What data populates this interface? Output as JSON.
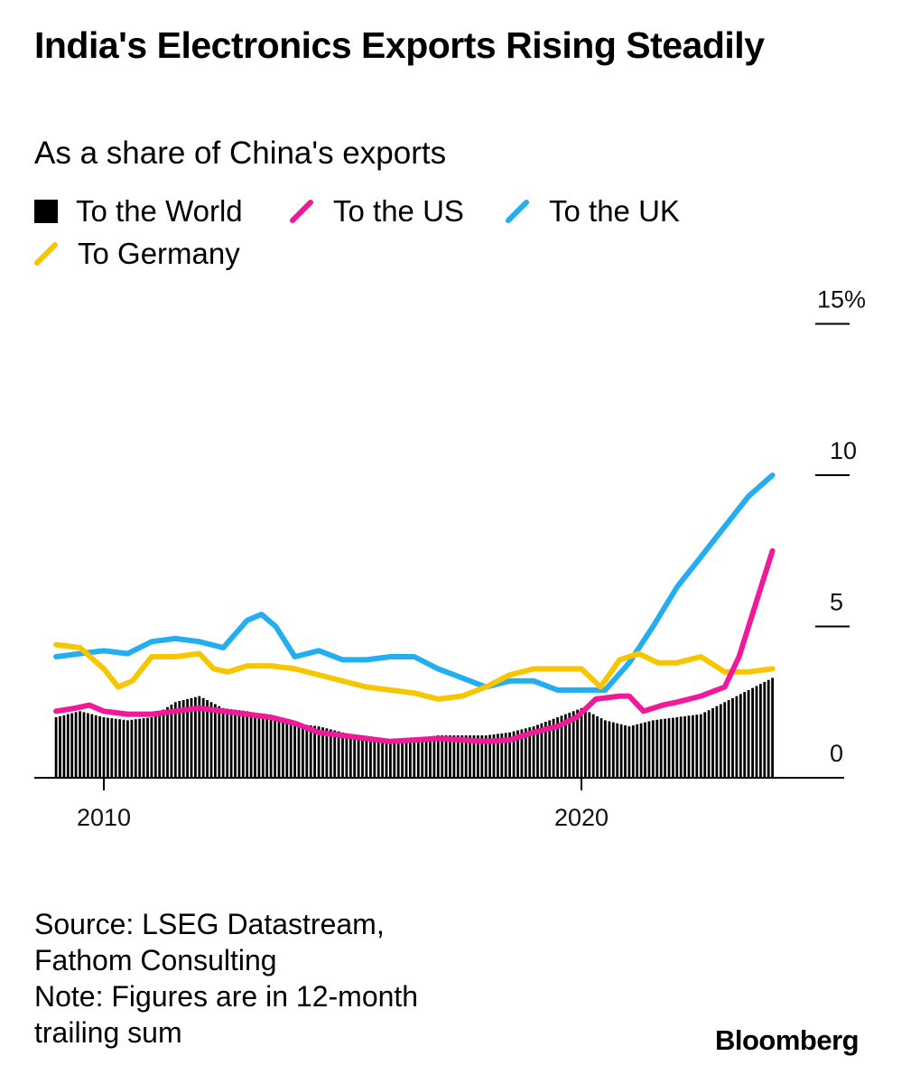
{
  "title": "India's Electronics Exports Rising Steadily",
  "subtitle": "As a share of China's exports",
  "legend": [
    {
      "label": "To the World",
      "color": "#000000",
      "shape": "square"
    },
    {
      "label": "To the US",
      "color": "#f0199a",
      "shape": "line"
    },
    {
      "label": "To the UK",
      "color": "#22aef0",
      "shape": "line"
    },
    {
      "label": "To Germany",
      "color": "#f8c600",
      "shape": "line"
    }
  ],
  "source_lines": [
    "Source: LSEG Datastream,",
    "Fathom Consulting",
    "Note: Figures are in 12-month",
    "trailing sum"
  ],
  "brand": "Bloomberg",
  "chart_data": {
    "type": "line",
    "title": "India's Electronics Exports Rising Steadily",
    "subtitle": "As a share of China's exports",
    "y_unit": "%",
    "ylim": [
      0,
      15
    ],
    "yticks": [
      0,
      5,
      10,
      15
    ],
    "ytick_labels": [
      "0",
      "5",
      "10",
      "15%"
    ],
    "xlim": [
      2008.6,
      2025.0
    ],
    "xticks": [
      2010,
      2020
    ],
    "xtick_labels": [
      "2010",
      "2020"
    ],
    "grid": false,
    "legend_position": "top",
    "series": [
      {
        "name": "To the World",
        "type": "bar",
        "color": "#000000",
        "x": [
          2009.0,
          2009.5,
          2010.0,
          2010.5,
          2011.0,
          2011.5,
          2012.0,
          2012.5,
          2013.0,
          2013.5,
          2014.0,
          2014.5,
          2015.0,
          2015.5,
          2016.0,
          2016.5,
          2017.0,
          2017.5,
          2018.0,
          2018.5,
          2019.0,
          2019.5,
          2020.0,
          2020.5,
          2021.0,
          2021.5,
          2022.0,
          2022.5,
          2023.0,
          2023.5,
          2024.0
        ],
        "values": [
          2.0,
          2.2,
          2.0,
          1.9,
          2.0,
          2.5,
          2.7,
          2.3,
          2.2,
          2.0,
          1.8,
          1.7,
          1.5,
          1.3,
          1.2,
          1.3,
          1.4,
          1.4,
          1.4,
          1.5,
          1.7,
          2.0,
          2.3,
          1.9,
          1.7,
          1.9,
          2.0,
          2.1,
          2.5,
          2.9,
          3.3
        ]
      },
      {
        "name": "To the US",
        "color": "#f0199a",
        "x": [
          2009.0,
          2009.4,
          2009.7,
          2010.0,
          2010.5,
          2011.0,
          2011.5,
          2012.0,
          2012.5,
          2013.0,
          2013.5,
          2014.0,
          2014.5,
          2015.0,
          2015.5,
          2016.0,
          2016.5,
          2017.0,
          2017.5,
          2018.0,
          2018.5,
          2019.0,
          2019.5,
          2019.9,
          2020.3,
          2020.8,
          2021.0,
          2021.3,
          2021.7,
          2022.0,
          2022.5,
          2023.0,
          2023.3,
          2023.6,
          2023.9,
          2024.0
        ],
        "values": [
          2.2,
          2.3,
          2.4,
          2.2,
          2.1,
          2.1,
          2.2,
          2.3,
          2.2,
          2.1,
          2.0,
          1.8,
          1.5,
          1.4,
          1.3,
          1.2,
          1.25,
          1.3,
          1.25,
          1.2,
          1.25,
          1.5,
          1.7,
          2.0,
          2.6,
          2.7,
          2.7,
          2.2,
          2.4,
          2.5,
          2.7,
          3.0,
          4.0,
          5.5,
          7.0,
          7.5
        ]
      },
      {
        "name": "To the UK",
        "color": "#22aef0",
        "x": [
          2009.0,
          2009.5,
          2010.0,
          2010.5,
          2011.0,
          2011.5,
          2012.0,
          2012.5,
          2013.0,
          2013.3,
          2013.6,
          2014.0,
          2014.5,
          2015.0,
          2015.5,
          2016.0,
          2016.5,
          2017.0,
          2017.5,
          2018.0,
          2018.5,
          2019.0,
          2019.5,
          2020.0,
          2020.5,
          2021.0,
          2021.5,
          2022.0,
          2022.5,
          2023.0,
          2023.5,
          2024.0
        ],
        "values": [
          4.0,
          4.1,
          4.2,
          4.1,
          4.5,
          4.6,
          4.5,
          4.3,
          5.2,
          5.4,
          5.0,
          4.0,
          4.2,
          3.9,
          3.9,
          4.0,
          4.0,
          3.6,
          3.3,
          3.0,
          3.2,
          3.2,
          2.9,
          2.9,
          2.9,
          3.8,
          5.0,
          6.3,
          7.3,
          8.3,
          9.3,
          10.0
        ]
      },
      {
        "name": "To Germany",
        "color": "#f8c600",
        "x": [
          2009.0,
          2009.5,
          2010.0,
          2010.3,
          2010.6,
          2011.0,
          2011.5,
          2012.0,
          2012.3,
          2012.6,
          2013.0,
          2013.5,
          2014.0,
          2014.5,
          2015.0,
          2015.5,
          2016.0,
          2016.5,
          2017.0,
          2017.5,
          2018.0,
          2018.5,
          2019.0,
          2019.5,
          2020.0,
          2020.4,
          2020.8,
          2021.2,
          2021.6,
          2022.0,
          2022.5,
          2023.0,
          2023.5,
          2024.0
        ],
        "values": [
          4.4,
          4.3,
          3.6,
          3.0,
          3.2,
          4.0,
          4.0,
          4.1,
          3.6,
          3.5,
          3.7,
          3.7,
          3.6,
          3.4,
          3.2,
          3.0,
          2.9,
          2.8,
          2.6,
          2.7,
          3.0,
          3.4,
          3.6,
          3.6,
          3.6,
          3.0,
          3.9,
          4.1,
          3.8,
          3.8,
          4.0,
          3.5,
          3.5,
          3.6
        ]
      }
    ]
  }
}
